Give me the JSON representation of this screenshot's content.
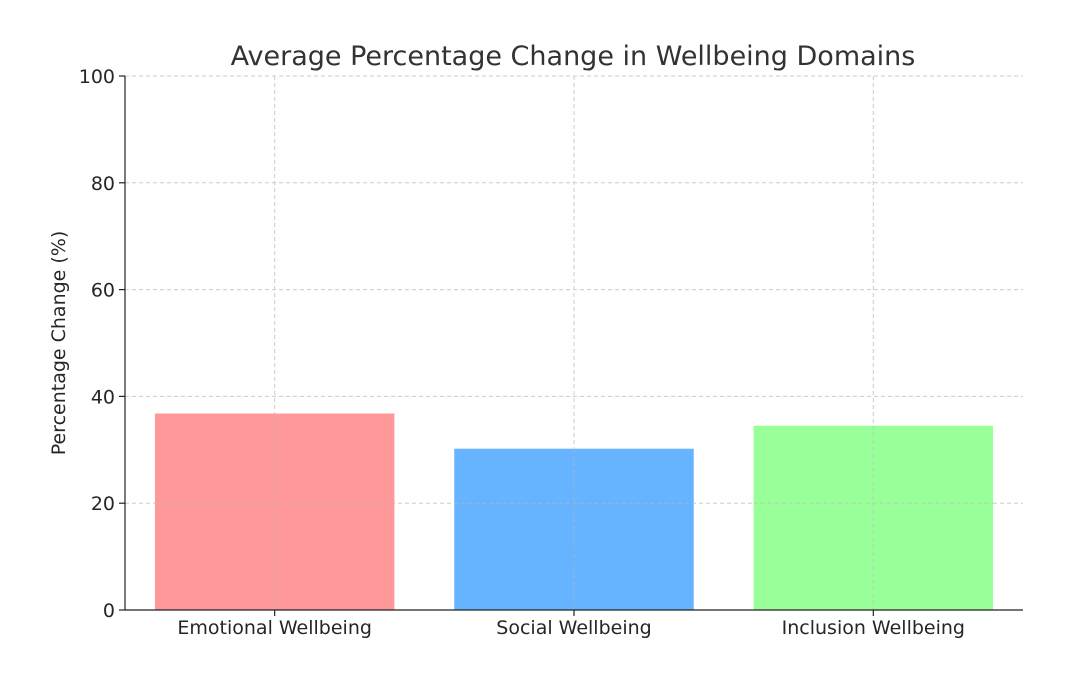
{
  "chart_data": {
    "type": "bar",
    "title": "Average Percentage Change in Wellbeing Domains",
    "xlabel": "",
    "ylabel": "Percentage Change (%)",
    "categories": [
      "Emotional Wellbeing",
      "Social Wellbeing",
      "Inclusion Wellbeing"
    ],
    "values": [
      36.8,
      30.2,
      34.5
    ],
    "colors": [
      "#ff9999",
      "#66b3ff",
      "#99ff99"
    ],
    "ylim": [
      0,
      100
    ],
    "yticks": [
      0,
      20,
      40,
      60,
      80,
      100
    ],
    "grid": true,
    "legend": "none"
  }
}
